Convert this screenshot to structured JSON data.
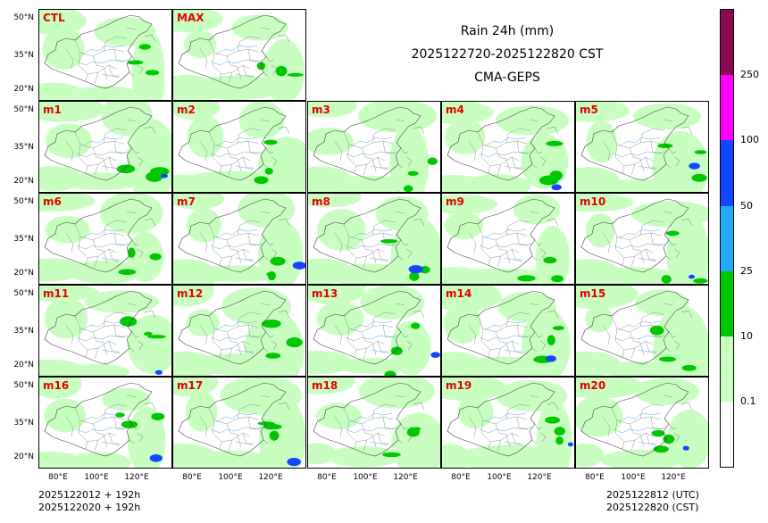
{
  "title": {
    "line1": "Rain 24h (mm)",
    "line2": "2025122720-2025122820 CST",
    "line3": "CMA-GEPS"
  },
  "panels": [
    "CTL",
    "MAX",
    "m1",
    "m2",
    "m3",
    "m4",
    "m5",
    "m6",
    "m7",
    "m8",
    "m9",
    "m10",
    "m11",
    "m12",
    "m13",
    "m14",
    "m15",
    "m16",
    "m17",
    "m18",
    "m19",
    "m20"
  ],
  "lat_labels": [
    "50°N",
    "35°N",
    "20°N"
  ],
  "lon_labels": [
    "80°E",
    "100°E",
    "120°E"
  ],
  "colorbar": {
    "levels": [
      "0.1",
      "10",
      "25",
      "50",
      "100",
      "250"
    ],
    "colors": [
      "#ffffff",
      "#c8ffc0",
      "#00c800",
      "#22aaff",
      "#1446ff",
      "#ff00ff",
      "#8c0a52"
    ]
  },
  "footer": {
    "left_line1": "2025122012 + 192h",
    "left_line2": "2025122020 + 192h",
    "right_line1": "2025122812 (UTC)",
    "right_line2": "2025122820 (CST)"
  }
}
